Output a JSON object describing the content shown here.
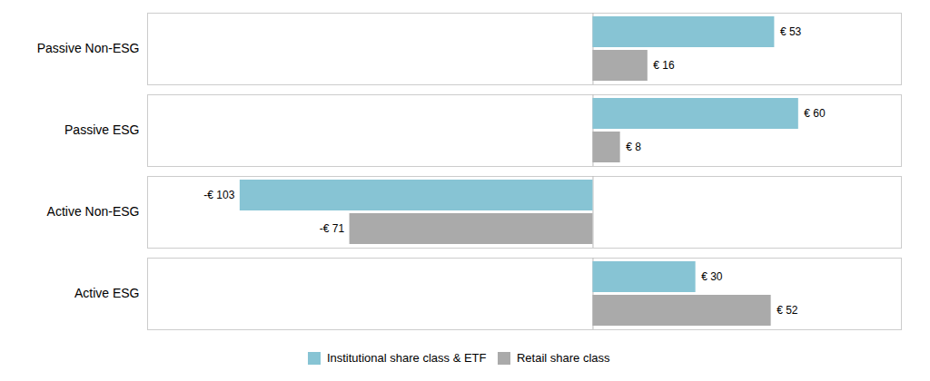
{
  "chart_data": {
    "type": "bar",
    "orientation": "horizontal",
    "categories": [
      "Active ESG",
      "Active Non-ESG",
      "Passive ESG",
      "Passive Non-ESG"
    ],
    "series": [
      {
        "name": "Institutional share class & ETF",
        "color": "#87C4D4",
        "values": [
          30,
          -103,
          60,
          53
        ],
        "value_labels": [
          "€ 30",
          "-€ 103",
          "€ 60",
          "€ 53"
        ]
      },
      {
        "name": "Retail share class",
        "color": "#AAAAAA",
        "values": [
          52,
          -71,
          8,
          16
        ],
        "value_labels": [
          "€ 52",
          "-€ 71",
          "€ 8",
          "€ 16"
        ]
      }
    ],
    "xlim": [
      -130,
      90
    ],
    "data_labels": true,
    "tick_labels": "y",
    "grid": false,
    "legend": "bottom"
  }
}
